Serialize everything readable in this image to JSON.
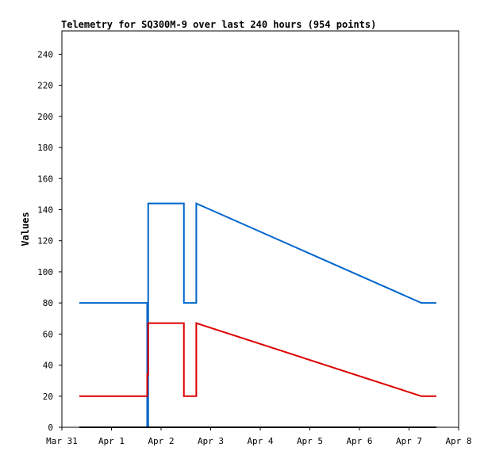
{
  "chart_data": {
    "type": "line",
    "title": "Telemetry for SQ300M-9 over last 240 hours (954 points)",
    "xlabel": "",
    "ylabel": "Values",
    "ylim": [
      0,
      255
    ],
    "yticks": [
      0,
      20,
      40,
      60,
      80,
      100,
      120,
      140,
      160,
      180,
      200,
      220,
      240
    ],
    "xlim": [
      0,
      8
    ],
    "xticks": [
      {
        "value": 0,
        "label": "Mar 31"
      },
      {
        "value": 1,
        "label": "Apr 1"
      },
      {
        "value": 2,
        "label": "Apr 2"
      },
      {
        "value": 3,
        "label": "Apr 3"
      },
      {
        "value": 4,
        "label": "Apr 4"
      },
      {
        "value": 5,
        "label": "Apr 5"
      },
      {
        "value": 6,
        "label": "Apr 6"
      },
      {
        "value": 7,
        "label": "Apr 7"
      },
      {
        "value": 8,
        "label": "Apr 8"
      }
    ],
    "grid": false,
    "series": [
      {
        "color": "#0066cc",
        "points": [
          [
            0.35,
            80
          ],
          [
            1.72,
            80
          ],
          [
            1.72,
            73
          ],
          [
            1.72,
            0
          ],
          [
            1.74,
            0
          ],
          [
            1.74,
            144
          ],
          [
            2.46,
            144
          ],
          [
            2.46,
            80
          ],
          [
            2.71,
            80
          ],
          [
            2.71,
            144
          ],
          [
            7.25,
            80
          ],
          [
            7.55,
            80
          ]
        ]
      },
      {
        "color": "#dd0000",
        "points": [
          [
            0.35,
            20
          ],
          [
            1.72,
            20
          ],
          [
            1.72,
            34
          ],
          [
            1.74,
            34
          ],
          [
            1.74,
            67
          ],
          [
            2.46,
            67
          ],
          [
            2.46,
            20
          ],
          [
            2.71,
            20
          ],
          [
            2.71,
            67
          ],
          [
            7.25,
            20
          ],
          [
            7.55,
            20
          ]
        ]
      },
      {
        "color": "#000000",
        "points": [
          [
            0.35,
            0
          ],
          [
            7.55,
            0
          ]
        ]
      }
    ]
  }
}
